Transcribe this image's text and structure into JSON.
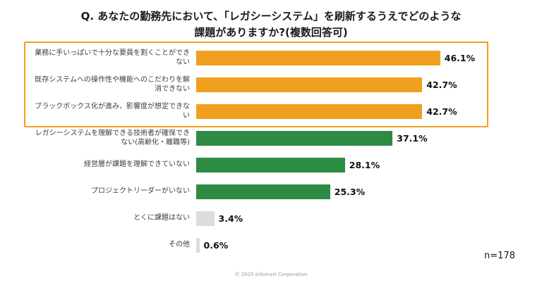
{
  "page": {
    "title_line1": "Q. あなたの勤務先において、「レガシーシステム」を刷新するうえでどのような",
    "title_line2": "課題がありますか?(複数回答可)",
    "sample_size": "n=178",
    "copyright": "© 2025 Infomart Corporation"
  },
  "chart_data": {
    "type": "bar",
    "orientation": "horizontal",
    "unit": "%",
    "xlim": [
      0,
      50
    ],
    "categories": [
      "業務に手いっぱいで十分な要員を割くことができない",
      "既存システムへの操作性や機能へのこだわりを解消できない",
      "ブラックボックス化が進み、影響度が想定できない",
      "レガシーシステムを理解できる技術者が確保できない(高齢化・離職等)",
      "経営層が課題を理解できていない",
      "プロジェクトリーダーがいない",
      "とくに課題はない",
      "その他"
    ],
    "values": [
      46.1,
      42.7,
      42.7,
      37.1,
      28.1,
      25.3,
      3.4,
      0.6
    ],
    "value_labels": [
      "46.1%",
      "42.7%",
      "42.7%",
      "37.1%",
      "28.1%",
      "25.3%",
      "3.4%",
      "0.6%"
    ],
    "bar_colors": [
      "orange",
      "orange",
      "orange",
      "green",
      "green",
      "green",
      "gray",
      "gray"
    ],
    "palette": {
      "orange": "#f0a01e",
      "green": "#2e8b44",
      "gray": "#dcdcdc"
    },
    "highlight": {
      "start": 0,
      "end": 2,
      "color": "#f0a01e"
    },
    "legend": null,
    "grid": false
  }
}
